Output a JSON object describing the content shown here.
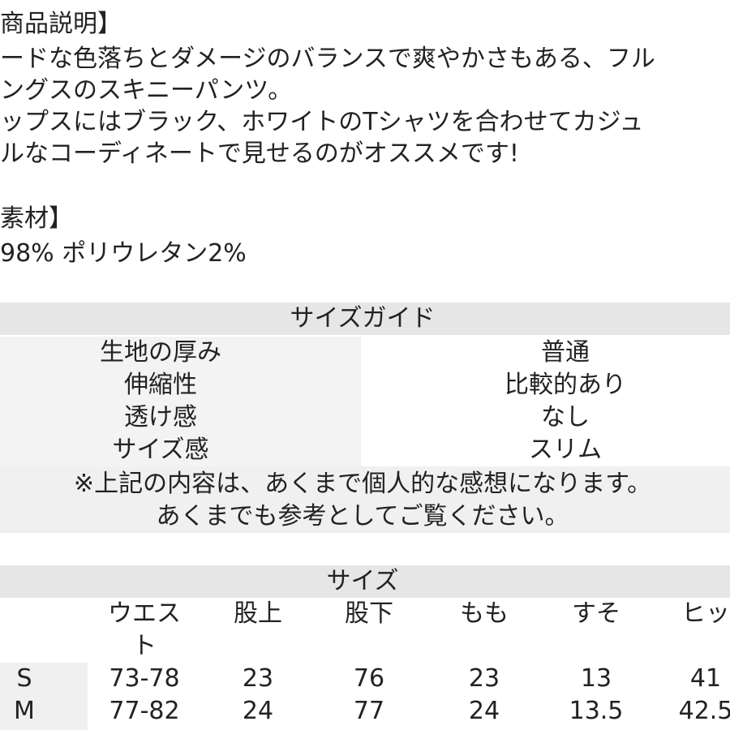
{
  "description": {
    "heading": "商品説明】",
    "lines": [
      "ードな色落ちとダメージのバランスで爽やかさもある、フル",
      "ングスのスキニーパンツ。",
      "ップスにはブラック、ホワイトのTシャツを合わせてカジュ",
      "ルなコーディネートで見せるのがオススメです!"
    ]
  },
  "material": {
    "heading": "素材】",
    "text": "98% ポリウレタン2%"
  },
  "size_guide": {
    "title": "サイズガイド",
    "rows": [
      [
        "生地の厚み",
        "普通"
      ],
      [
        "伸縮性",
        "比較的あり"
      ],
      [
        "透け感",
        "なし"
      ],
      [
        "サイズ感",
        "スリム"
      ]
    ],
    "notes": [
      "※上記の内容は、あくまで個人的な感想になります。",
      "あくまでも参考としてご覧ください。"
    ]
  },
  "size_table": {
    "title": "サイズ",
    "columns": [
      "ウエスト",
      "股上",
      "股下",
      "もも",
      "すそ",
      "ヒッ"
    ],
    "rows": [
      {
        "label": "S",
        "values": [
          "73-78",
          "23",
          "76",
          "23",
          "13",
          "41"
        ]
      },
      {
        "label": "M",
        "values": [
          "77-82",
          "24",
          "77",
          "24",
          "13.5",
          "42.5"
        ]
      }
    ]
  }
}
